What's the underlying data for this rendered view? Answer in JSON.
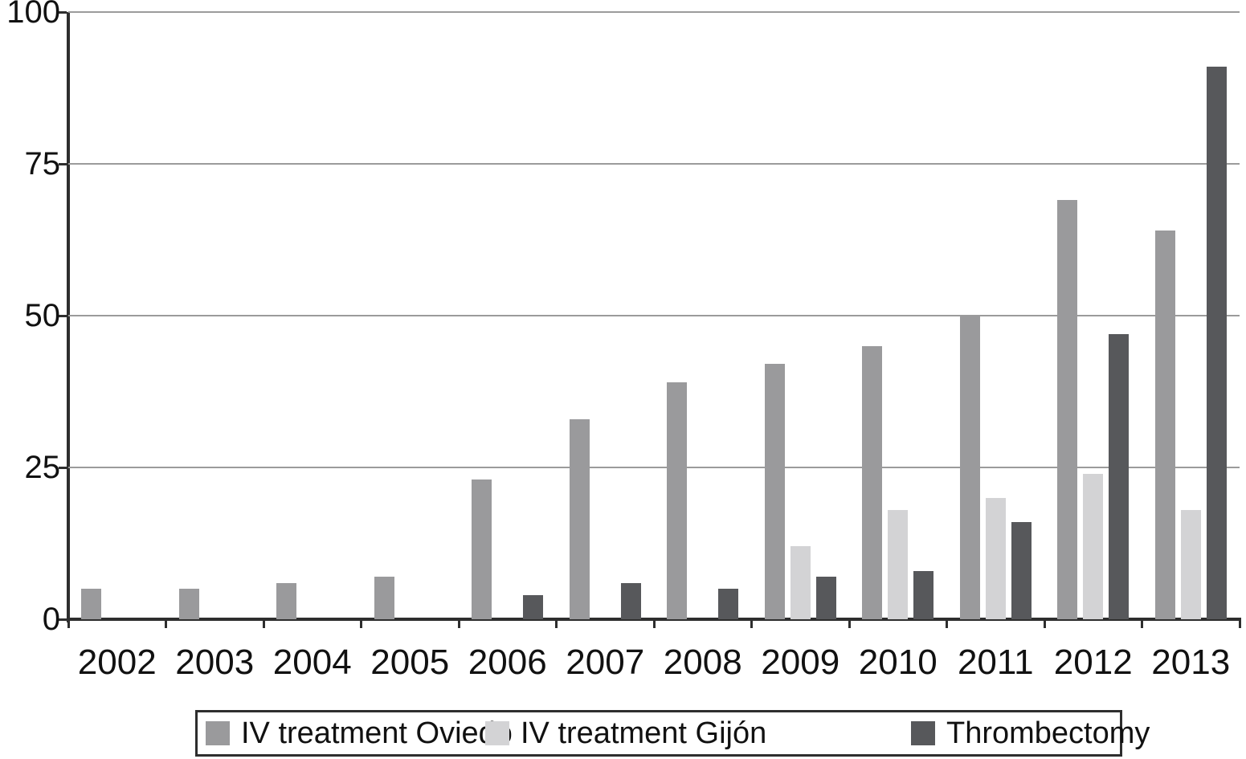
{
  "chart_data": {
    "type": "bar",
    "title": "",
    "categories": [
      "2002",
      "2003",
      "2004",
      "2005",
      "2006",
      "2007",
      "2008",
      "2009",
      "2010",
      "2011",
      "2012",
      "2013"
    ],
    "series": [
      {
        "key": "iv-oviedo",
        "name": "IV treatment Oviedo",
        "color": "#9a9a9c",
        "values": [
          5,
          5,
          6,
          7,
          23,
          33,
          39,
          42,
          45,
          50,
          69,
          64
        ]
      },
      {
        "key": "iv-gijon",
        "name": "IV treatment Gijón",
        "color": "#d3d3d5",
        "values": [
          0,
          0,
          0,
          0,
          0,
          0,
          0,
          12,
          18,
          20,
          24,
          18
        ]
      },
      {
        "key": "thrombectomy",
        "name": "Thrombectomy",
        "color": "#57585b",
        "values": [
          0,
          0,
          0,
          0,
          4,
          6,
          5,
          7,
          8,
          16,
          47,
          91
        ]
      }
    ],
    "xlabel": "",
    "ylabel": "",
    "ylim": [
      0,
      100
    ],
    "yticks": [
      0,
      25,
      50,
      75,
      100
    ],
    "ytick_labels": [
      "0",
      "25",
      "50",
      "75",
      "100"
    ],
    "grid": "horizontal",
    "legend_position": "bottom",
    "colors": {
      "axis": "#2e2e2e",
      "gridline": "#9b9b9b",
      "text": "#111111",
      "background": "#ffffff"
    }
  }
}
